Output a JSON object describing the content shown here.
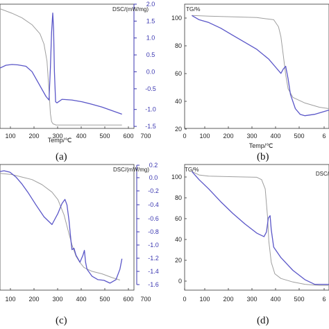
{
  "captions": [
    "(a)",
    "(b)",
    "(c)",
    "(d)"
  ],
  "chart_data": [
    {
      "type": "line",
      "panel": "(a)",
      "xlabel": "Temp/℃",
      "y1label": "",
      "y2label": "DSC/(mW/mg)",
      "xticks": [
        "100",
        "200",
        "300",
        "400",
        "500",
        "600",
        "700"
      ],
      "y1ticks": [],
      "y2ticks": [
        "2.0",
        "1.5",
        "1.0",
        "0.5",
        "0.0",
        "-0.5",
        "-1.0",
        "-1.5"
      ],
      "xlim": [
        40,
        710
      ],
      "y1lim": [
        -1,
        108
      ],
      "y2lim": [
        -1.5,
        2.0
      ],
      "series": [
        {
          "axis": "y1",
          "color": "#9e9e9e",
          "x": [
            40,
            100,
            150,
            200,
            240,
            260,
            275,
            285,
            292,
            298,
            305,
            320,
            400,
            500,
            650
          ],
          "y": [
            104,
            100,
            96,
            90,
            82,
            73,
            58,
            32,
            12,
            5,
            3,
            2,
            2,
            2,
            2
          ]
        },
        {
          "axis": "y2",
          "color": "#5a56c8",
          "x": [
            40,
            70,
            100,
            130,
            170,
            200,
            240,
            270,
            285,
            292,
            298,
            304,
            308,
            312,
            318,
            325,
            350,
            400,
            450,
            500,
            550,
            600,
            650
          ],
          "y": [
            0.2,
            0.28,
            0.3,
            0.29,
            0.25,
            0.1,
            -0.3,
            -0.6,
            -0.7,
            0.2,
            1.2,
            1.75,
            1.3,
            0.1,
            -0.75,
            -0.78,
            -0.68,
            -0.7,
            -0.75,
            -0.82,
            -0.9,
            -1.0,
            -1.1
          ]
        }
      ]
    },
    {
      "type": "line",
      "panel": "(b)",
      "xlabel": "Temp/℃",
      "y1label": "TG/%",
      "y2label": "",
      "xticks": [
        "0",
        "100",
        "200",
        "300",
        "400",
        "500",
        "6"
      ],
      "y1ticks": [
        "100",
        "80",
        "60",
        "40",
        "20"
      ],
      "y2ticks": [],
      "xlim": [
        0,
        600
      ],
      "y1lim": [
        20,
        108
      ],
      "y2lim": [
        -1,
        1
      ],
      "series": [
        {
          "axis": "y1",
          "color": "#9e9e9e",
          "x": [
            30,
            100,
            200,
            300,
            370,
            390,
            400,
            410,
            420,
            430,
            450,
            500,
            560,
            600
          ],
          "y": [
            100,
            99.5,
            99,
            98.5,
            97,
            92,
            85,
            72,
            58,
            48,
            42,
            38,
            35,
            34
          ]
        },
        {
          "axis": "y1",
          "color": "#5a56c8",
          "x": [
            30,
            60,
            100,
            150,
            200,
            250,
            300,
            350,
            380,
            400,
            410,
            420,
            430,
            440,
            460,
            480,
            500,
            540,
            580,
            600
          ],
          "y": [
            100,
            97,
            95,
            91,
            86,
            81,
            76,
            69,
            63,
            59,
            62,
            64,
            55,
            44,
            34,
            30,
            29,
            30,
            32,
            33
          ]
        }
      ]
    },
    {
      "type": "line",
      "panel": "(c)",
      "xlabel": "",
      "y1label": "",
      "y2label": "DSC/(mW/mg)",
      "xticks": [
        "100",
        "200",
        "300",
        "400",
        "500",
        "600",
        "700"
      ],
      "y1ticks": [],
      "y2ticks": [
        "0.2",
        "0.0",
        "-0.2",
        "-0.4",
        "-0.6",
        "-0.8",
        "-1.0",
        "-1.2",
        "-1.4",
        "-1.6"
      ],
      "xlim": [
        40,
        710
      ],
      "y1lim": [
        0,
        100
      ],
      "y2lim": [
        -1.6,
        0.2
      ],
      "series": [
        {
          "axis": "y1",
          "color": "#9e9e9e",
          "x": [
            40,
            100,
            150,
            200,
            250,
            300,
            330,
            360,
            380,
            400,
            420,
            440,
            460,
            500,
            550,
            600,
            640
          ],
          "y": [
            93,
            92,
            90,
            88,
            84,
            78,
            72,
            60,
            48,
            36,
            27,
            22,
            18,
            15,
            13,
            10,
            8
          ]
        },
        {
          "axis": "y2",
          "color": "#5a56c8",
          "x": [
            40,
            60,
            90,
            120,
            150,
            180,
            220,
            260,
            300,
            330,
            350,
            365,
            375,
            385,
            395,
            400,
            410,
            420,
            440,
            455,
            462,
            468,
            475,
            500,
            530,
            560,
            590,
            620,
            640,
            650
          ],
          "y": [
            0.1,
            0.11,
            0.09,
            0.02,
            -0.08,
            -0.2,
            -0.38,
            -0.55,
            -0.66,
            -0.5,
            -0.36,
            -0.3,
            -0.38,
            -0.6,
            -0.9,
            -1.02,
            -1.0,
            -1.1,
            -1.2,
            -1.1,
            -1.03,
            -1.2,
            -1.3,
            -1.4,
            -1.45,
            -1.46,
            -1.5,
            -1.45,
            -1.3,
            -1.15
          ]
        }
      ]
    },
    {
      "type": "line",
      "panel": "(d)",
      "xlabel": "",
      "y1label": "TG/%",
      "y2label": "DSC/",
      "xticks": [
        "0",
        "100",
        "200",
        "300",
        "400",
        "500",
        "6"
      ],
      "y1ticks": [
        "100",
        "80",
        "60",
        "40",
        "20",
        "0"
      ],
      "y2ticks": [],
      "xlim": [
        0,
        600
      ],
      "y1lim": [
        -2,
        106
      ],
      "y2lim": [
        -1,
        1
      ],
      "series": [
        {
          "axis": "y1",
          "color": "#9e9e9e",
          "x": [
            30,
            60,
            100,
            200,
            300,
            320,
            335,
            345,
            350,
            360,
            375,
            400,
            450,
            500,
            560,
            600
          ],
          "y": [
            100,
            97,
            96,
            95.5,
            95,
            93,
            85,
            60,
            40,
            22,
            12,
            8,
            5,
            3,
            2,
            2
          ]
        },
        {
          "axis": "y1",
          "color": "#5a56c8",
          "x": [
            30,
            60,
            100,
            150,
            200,
            250,
            300,
            330,
            340,
            348,
            355,
            360,
            370,
            400,
            450,
            500,
            540,
            580,
            600
          ],
          "y": [
            100,
            93,
            85,
            74,
            64,
            55,
            47,
            44,
            48,
            60,
            62,
            50,
            35,
            26,
            15,
            7,
            3,
            3,
            3
          ]
        }
      ]
    }
  ]
}
